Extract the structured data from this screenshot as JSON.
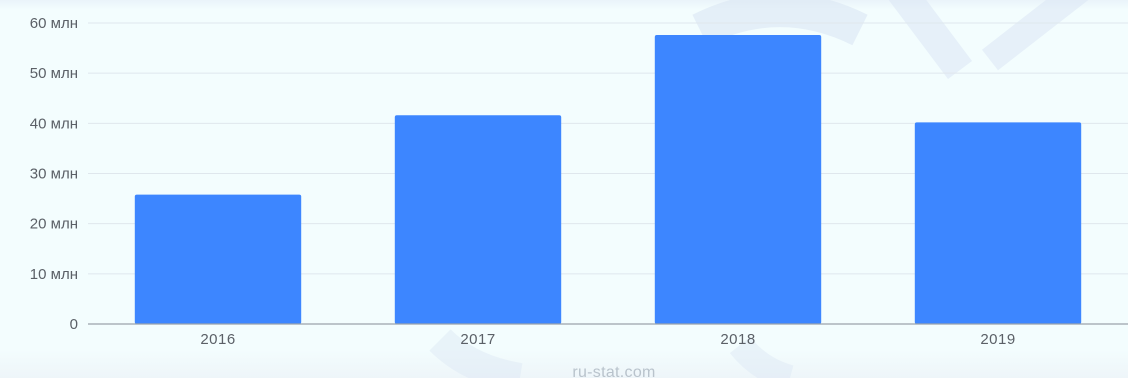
{
  "chart_data": {
    "type": "bar",
    "title": "",
    "xlabel": "",
    "ylabel": "",
    "categories": [
      "2016",
      "2017",
      "2018",
      "2019"
    ],
    "values": [
      25.8,
      41.6,
      57.6,
      40.2
    ],
    "ylim": [
      0,
      60
    ],
    "yticks": [
      {
        "value": 0,
        "label": "0"
      },
      {
        "value": 10,
        "label": "10 млн"
      },
      {
        "value": 20,
        "label": "20 млн"
      },
      {
        "value": 30,
        "label": "30 млн"
      },
      {
        "value": 40,
        "label": "40 млн"
      },
      {
        "value": 50,
        "label": "50 млн"
      },
      {
        "value": 60,
        "label": "60 млн"
      }
    ],
    "grid": true,
    "legend": "none",
    "colors": {
      "bar": "#3d86ff",
      "grid": "#dfe7ed",
      "axis": "#9aa3ab",
      "tick_text": "#5b6067",
      "background": "#f3fdfe",
      "watermark_shape": "#d8e3f3"
    }
  },
  "watermark": {
    "text": "ru-stat.com"
  }
}
